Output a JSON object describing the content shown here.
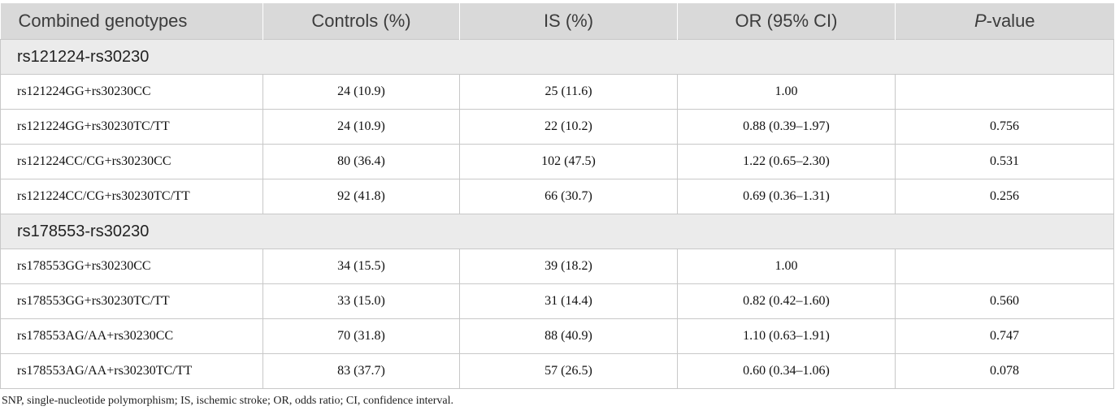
{
  "header": {
    "col1": "Combined genotypes",
    "col2": "Controls (%)",
    "col3": "IS (%)",
    "col4": "OR (95% CI)",
    "col5_italic": "P",
    "col5_rest": "-value"
  },
  "groups": [
    {
      "title": "rs121224-rs30230",
      "rows": [
        {
          "genotype": "rs121224GG+rs30230CC",
          "controls": "24 (10.9)",
          "is": "25 (11.6)",
          "or": "1.00",
          "p": ""
        },
        {
          "genotype": "rs121224GG+rs30230TC/TT",
          "controls": "24 (10.9)",
          "is": "22 (10.2)",
          "or": "0.88 (0.39–1.97)",
          "p": "0.756"
        },
        {
          "genotype": "rs121224CC/CG+rs30230CC",
          "controls": "80 (36.4)",
          "is": "102 (47.5)",
          "or": "1.22 (0.65–2.30)",
          "p": "0.531"
        },
        {
          "genotype": "rs121224CC/CG+rs30230TC/TT",
          "controls": "92 (41.8)",
          "is": "66 (30.7)",
          "or": "0.69 (0.36–1.31)",
          "p": "0.256"
        }
      ]
    },
    {
      "title": "rs178553-rs30230",
      "rows": [
        {
          "genotype": "rs178553GG+rs30230CC",
          "controls": "34 (15.5)",
          "is": "39 (18.2)",
          "or": "1.00",
          "p": ""
        },
        {
          "genotype": "rs178553GG+rs30230TC/TT",
          "controls": "33 (15.0)",
          "is": "31 (14.4)",
          "or": "0.82 (0.42–1.60)",
          "p": "0.560"
        },
        {
          "genotype": "rs178553AG/AA+rs30230CC",
          "controls": "70 (31.8)",
          "is": "88 (40.9)",
          "or": "1.10 (0.63–1.91)",
          "p": "0.747"
        },
        {
          "genotype": "rs178553AG/AA+rs30230TC/TT",
          "controls": "83 (37.7)",
          "is": "57 (26.5)",
          "or": "0.60 (0.34–1.06)",
          "p": "0.078"
        }
      ]
    }
  ],
  "footnote": "SNP, single-nucleotide polymorphism; IS, ischemic stroke; OR, odds ratio; CI, confidence interval."
}
